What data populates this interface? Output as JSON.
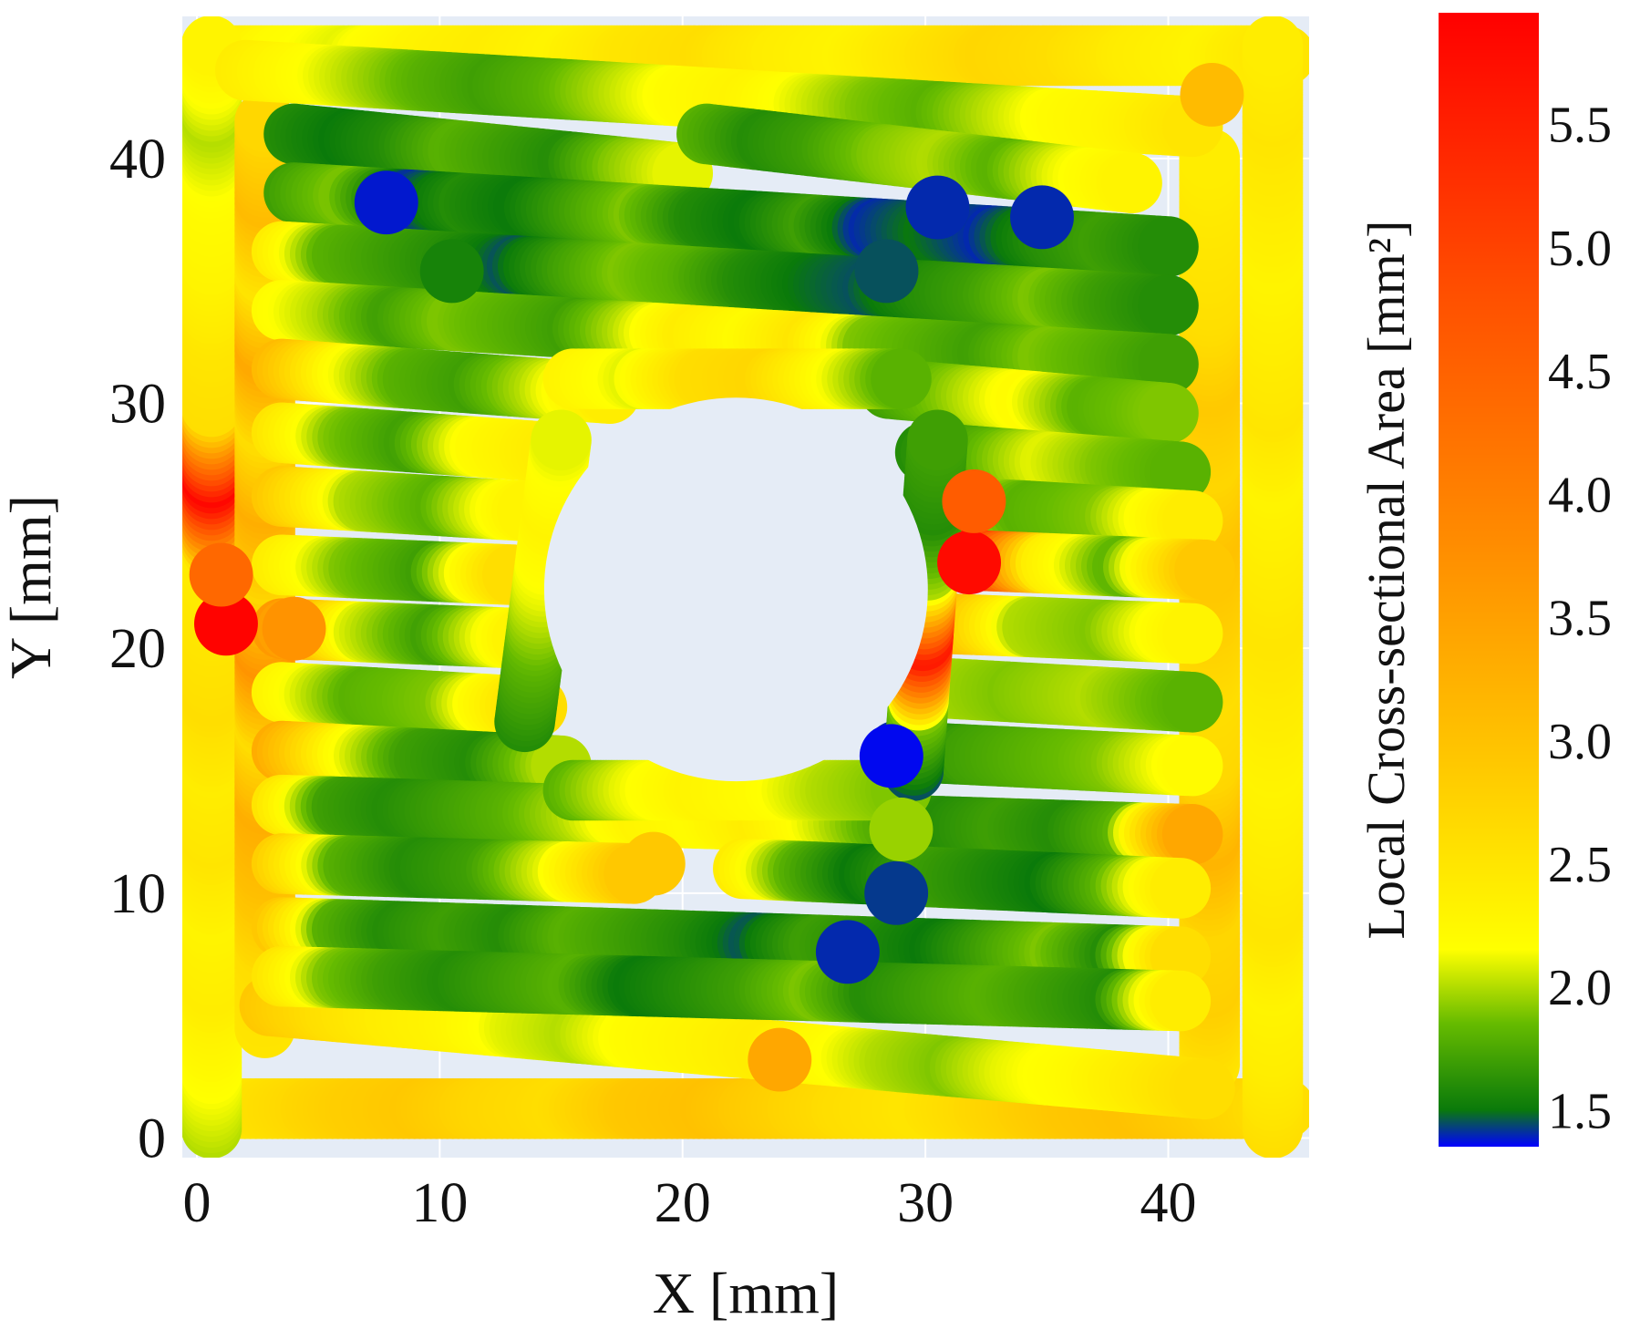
{
  "chart_data": {
    "type": "heatmap",
    "xlabel": "X [mm]",
    "ylabel": "Y [mm]",
    "xlim": [
      -0.6,
      45.8
    ],
    "ylim": [
      -0.8,
      45.8
    ],
    "xticks": [
      0,
      10,
      20,
      30,
      40
    ],
    "yticks": [
      0,
      10,
      20,
      30,
      40
    ],
    "grid": true,
    "plot_background": "#e5ecf6",
    "hole": {
      "cx": 22.2,
      "cy": 22.4,
      "r": 7.9
    },
    "colorbar": {
      "title": "Local Cross-sectional Area [mm²]",
      "range": [
        1.35,
        5.95
      ],
      "ticks": [
        1.5,
        2.0,
        2.5,
        3.0,
        3.5,
        4.0,
        4.5,
        5.0,
        5.5
      ],
      "colors": [
        {
          "v": 1.35,
          "c": "#0000ff"
        },
        {
          "v": 1.5,
          "c": "#0a7a0a"
        },
        {
          "v": 1.85,
          "c": "#66bb00"
        },
        {
          "v": 2.15,
          "c": "#ffff00"
        },
        {
          "v": 2.9,
          "c": "#ffc800"
        },
        {
          "v": 3.8,
          "c": "#ff8c00"
        },
        {
          "v": 4.8,
          "c": "#ff5000"
        },
        {
          "v": 5.95,
          "c": "#ff0000"
        }
      ]
    },
    "rasters": [
      {
        "name": "bottom-perimeter",
        "from": [
          0.4,
          1.2
        ],
        "to": [
          44.8,
          1.2
        ],
        "values": [
          2.4,
          2.6,
          2.8,
          2.9,
          2.7,
          2.6,
          2.9,
          3.0,
          2.8,
          2.6,
          2.5,
          2.7,
          2.9,
          3.0,
          2.8,
          2.6
        ]
      },
      {
        "name": "top-perimeter",
        "from": [
          0.4,
          44.2
        ],
        "to": [
          44.8,
          44.2
        ],
        "values": [
          2.5,
          2.2,
          2.1,
          2.3,
          2.4,
          2.3,
          2.5,
          2.6,
          2.4,
          2.3,
          2.5,
          2.7,
          2.6,
          2.4,
          2.3,
          2.5
        ]
      },
      {
        "name": "left-perimeter",
        "from": [
          0.6,
          0.4
        ],
        "to": [
          0.6,
          44.6
        ],
        "values": [
          2.0,
          2.2,
          2.4,
          2.3,
          2.5,
          2.4,
          2.6,
          2.5,
          2.4,
          5.9,
          2.6,
          2.5,
          2.3,
          2.2,
          2.0,
          2.3
        ]
      },
      {
        "name": "right-perimeter",
        "from": [
          44.3,
          0.4
        ],
        "to": [
          44.3,
          44.6
        ],
        "values": [
          2.6,
          2.4,
          2.3,
          2.5,
          2.4,
          2.3,
          2.4,
          2.5,
          2.4,
          2.3,
          2.5,
          2.4,
          2.3,
          2.4,
          2.5,
          2.4
        ]
      },
      {
        "name": "left-inner-wall",
        "from": [
          2.8,
          4.5
        ],
        "to": [
          2.8,
          41.5
        ],
        "values": [
          2.5,
          2.6,
          3.0,
          3.3,
          2.6,
          3.7,
          2.7,
          3.3,
          2.6,
          3.4,
          2.5,
          3.1,
          2.7
        ]
      },
      {
        "name": "right-inner-wall",
        "from": [
          41.7,
          3.0
        ],
        "to": [
          41.7,
          40.0
        ],
        "values": [
          2.5,
          2.8,
          2.7,
          3.2,
          2.7,
          2.6,
          2.8,
          3.0,
          2.7,
          2.9,
          2.6,
          2.5,
          2.4
        ]
      },
      {
        "name": "diag-bottom",
        "from": [
          3.0,
          5.4
        ],
        "to": [
          41.5,
          2.0
        ],
        "values": [
          2.9,
          2.6,
          2.4,
          2.3,
          2.1,
          2.0,
          2.2,
          2.3,
          2.4,
          2.2,
          2.0,
          1.9,
          2.1,
          2.2,
          2.4,
          2.6
        ]
      },
      {
        "name": "diag-top",
        "from": [
          2.0,
          43.6
        ],
        "to": [
          41.0,
          41.3
        ],
        "values": [
          2.4,
          2.2,
          2.0,
          1.8,
          1.7,
          1.8,
          2.0,
          2.2,
          2.3,
          2.1,
          1.9,
          1.8,
          2.0,
          2.2,
          2.3,
          2.5
        ]
      },
      {
        "name": "row-1",
        "from": [
          4.0,
          41.0
        ],
        "to": [
          20.0,
          39.4
        ],
        "values": [
          1.6,
          1.5,
          1.6,
          1.8,
          1.7,
          1.6,
          1.9,
          2.1
        ]
      },
      {
        "name": "row-1b",
        "from": [
          21.0,
          41.0
        ],
        "to": [
          38.5,
          39.0
        ],
        "values": [
          1.8,
          1.6,
          1.7,
          1.9,
          2.0,
          1.8,
          2.1,
          2.3
        ]
      },
      {
        "name": "row-2",
        "from": [
          4.0,
          38.6
        ],
        "to": [
          40.0,
          36.4
        ],
        "values": [
          1.7,
          1.9,
          1.4,
          1.6,
          1.5,
          1.7,
          1.9,
          1.6,
          1.5,
          1.7,
          1.4,
          1.5,
          1.4,
          1.6,
          1.7,
          1.6
        ]
      },
      {
        "name": "row-3",
        "from": [
          3.5,
          36.2
        ],
        "to": [
          40.0,
          34.0
        ],
        "values": [
          2.4,
          1.8,
          1.7,
          1.6,
          1.45,
          1.7,
          1.9,
          1.8,
          1.6,
          1.5,
          1.45,
          1.6,
          1.7,
          1.9,
          1.7,
          1.6
        ]
      },
      {
        "name": "row-4",
        "from": [
          3.5,
          33.8
        ],
        "to": [
          40.0,
          31.6
        ],
        "values": [
          2.2,
          2.0,
          1.7,
          1.9,
          1.8,
          1.7,
          2.0,
          2.4,
          2.2,
          2.5,
          1.9,
          1.8,
          1.7,
          1.9,
          1.8,
          1.7
        ]
      },
      {
        "name": "row-5-left",
        "from": [
          3.5,
          31.4
        ],
        "to": [
          17.0,
          30.4
        ],
        "values": [
          3.1,
          2.2,
          1.8,
          1.7,
          2.0,
          2.4
        ]
      },
      {
        "name": "row-5-right",
        "from": [
          28.5,
          30.6
        ],
        "to": [
          40.0,
          29.6
        ],
        "values": [
          1.7,
          1.9,
          2.2,
          1.8,
          1.9
        ]
      },
      {
        "name": "row-6-left",
        "from": [
          3.5,
          28.8
        ],
        "to": [
          14.6,
          28.0
        ],
        "values": [
          2.5,
          1.9,
          1.7,
          2.2,
          2.4
        ]
      },
      {
        "name": "row-6-right",
        "from": [
          30.0,
          28.0
        ],
        "to": [
          40.5,
          27.2
        ],
        "values": [
          1.6,
          1.8,
          2.1,
          1.9,
          1.8
        ]
      },
      {
        "name": "row-7-left",
        "from": [
          3.5,
          26.2
        ],
        "to": [
          13.6,
          25.6
        ],
        "values": [
          2.9,
          2.0,
          1.8,
          2.3
        ]
      },
      {
        "name": "row-7-right",
        "from": [
          31.0,
          25.8
        ],
        "to": [
          41.0,
          25.2
        ],
        "values": [
          2.2,
          1.8,
          1.9,
          2.4
        ]
      },
      {
        "name": "row-8-left",
        "from": [
          3.5,
          23.4
        ],
        "to": [
          13.0,
          23.0
        ],
        "values": [
          2.4,
          1.9,
          1.7,
          2.6
        ]
      },
      {
        "name": "row-8-right",
        "from": [
          31.8,
          23.6
        ],
        "to": [
          41.5,
          23.2
        ],
        "values": [
          5.8,
          2.4,
          1.8,
          2.9
        ]
      },
      {
        "name": "row-9-left",
        "from": [
          3.5,
          20.8
        ],
        "to": [
          13.4,
          20.4
        ],
        "values": [
          3.6,
          2.1,
          1.7,
          2.3
        ]
      },
      {
        "name": "row-9-right",
        "from": [
          31.0,
          21.0
        ],
        "to": [
          41.0,
          20.6
        ],
        "values": [
          3.2,
          2.0,
          1.9,
          2.3
        ]
      },
      {
        "name": "row-10-left",
        "from": [
          3.5,
          18.2
        ],
        "to": [
          14.0,
          17.6
        ],
        "values": [
          2.3,
          1.8,
          1.9,
          2.6
        ]
      },
      {
        "name": "row-10-right",
        "from": [
          30.2,
          18.4
        ],
        "to": [
          41.0,
          17.8
        ],
        "values": [
          2.0,
          1.9,
          2.0,
          1.8
        ]
      },
      {
        "name": "row-11-left",
        "from": [
          3.5,
          15.8
        ],
        "to": [
          15.0,
          15.2
        ],
        "values": [
          3.3,
          2.2,
          1.7,
          1.6,
          2.0
        ]
      },
      {
        "name": "row-11-right",
        "from": [
          28.8,
          15.8
        ],
        "to": [
          41.0,
          15.2
        ],
        "values": [
          1.4,
          1.7,
          1.8,
          1.9,
          2.2
        ]
      },
      {
        "name": "row-12",
        "from": [
          3.5,
          13.6
        ],
        "to": [
          41.0,
          12.4
        ],
        "values": [
          2.5,
          1.7,
          1.6,
          1.7,
          1.8,
          2.0,
          2.3,
          2.2,
          2.4,
          2.1,
          1.8,
          1.6,
          1.7,
          1.6,
          1.8,
          3.4
        ]
      },
      {
        "name": "row-13-left",
        "from": [
          3.5,
          11.2
        ],
        "to": [
          18.0,
          10.8
        ],
        "values": [
          2.8,
          1.8,
          1.6,
          1.7,
          2.1,
          2.9
        ]
      },
      {
        "name": "row-13-right",
        "from": [
          22.5,
          11.0
        ],
        "to": [
          40.5,
          10.2
        ],
        "values": [
          2.4,
          1.8,
          1.5,
          1.7,
          1.6,
          1.5,
          1.8,
          2.4
        ]
      },
      {
        "name": "row-14",
        "from": [
          3.5,
          8.6
        ],
        "to": [
          40.5,
          7.4
        ],
        "values": [
          2.9,
          1.8,
          1.6,
          1.7,
          1.6,
          1.8,
          1.7,
          1.6,
          1.45,
          1.7,
          1.6,
          1.5,
          1.7,
          1.9,
          1.6,
          2.6
        ]
      },
      {
        "name": "row-15",
        "from": [
          3.5,
          6.6
        ],
        "to": [
          40.5,
          5.6
        ],
        "values": [
          2.5,
          1.9,
          1.7,
          1.6,
          1.7,
          1.8,
          1.5,
          1.6,
          1.7,
          1.9,
          1.6,
          1.7,
          1.8,
          1.7,
          1.6,
          2.4
        ]
      },
      {
        "name": "hole-ring-left",
        "from": [
          13.5,
          17.0
        ],
        "to": [
          15.0,
          28.5
        ],
        "values": [
          1.6,
          1.8,
          2.1,
          2.3,
          2.1
        ]
      },
      {
        "name": "hole-ring-bottom",
        "from": [
          15.5,
          14.2
        ],
        "to": [
          29.0,
          14.2
        ],
        "values": [
          1.8,
          2.1,
          2.3,
          2.2,
          2.0,
          1.9
        ]
      },
      {
        "name": "hole-ring-right",
        "from": [
          29.5,
          15.0
        ],
        "to": [
          30.5,
          28.5
        ],
        "values": [
          1.45,
          1.9,
          5.7,
          2.0,
          1.6,
          1.7
        ]
      },
      {
        "name": "hole-ring-top",
        "from": [
          15.5,
          31.0
        ],
        "to": [
          29.0,
          31.0
        ],
        "values": [
          2.3,
          2.1,
          2.6,
          2.7,
          2.2,
          1.8
        ]
      }
    ],
    "blobs": [
      {
        "x": 1.2,
        "y": 21.0,
        "v": 5.9
      },
      {
        "x": 4.0,
        "y": 20.8,
        "v": 3.7
      },
      {
        "x": 31.8,
        "y": 23.5,
        "v": 5.8
      },
      {
        "x": 41.8,
        "y": 42.6,
        "v": 3.1
      },
      {
        "x": 18.8,
        "y": 11.2,
        "v": 2.9
      },
      {
        "x": 24.0,
        "y": 3.2,
        "v": 3.4
      },
      {
        "x": 7.8,
        "y": 38.2,
        "v": 1.38
      },
      {
        "x": 30.5,
        "y": 38.0,
        "v": 1.4
      },
      {
        "x": 34.8,
        "y": 37.6,
        "v": 1.4
      },
      {
        "x": 28.4,
        "y": 35.4,
        "v": 1.45
      },
      {
        "x": 28.6,
        "y": 15.6,
        "v": 1.36
      },
      {
        "x": 28.8,
        "y": 10.0,
        "v": 1.42
      },
      {
        "x": 26.8,
        "y": 7.6,
        "v": 1.4
      },
      {
        "x": 10.5,
        "y": 35.4,
        "v": 1.55
      },
      {
        "x": 29.0,
        "y": 12.6,
        "v": 1.95
      },
      {
        "x": 32.0,
        "y": 26.0,
        "v": 4.6
      },
      {
        "x": 1.0,
        "y": 23.0,
        "v": 4.4
      }
    ]
  }
}
